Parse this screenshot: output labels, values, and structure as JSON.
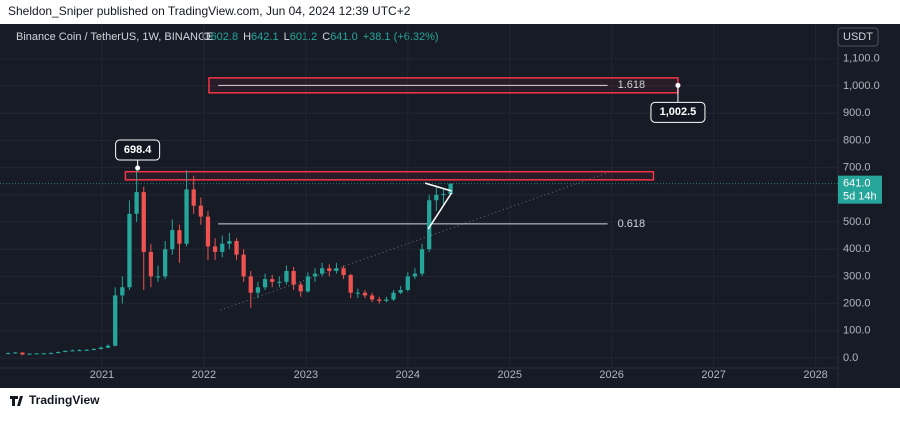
{
  "header": {
    "publisher": "Sheldon_Sniper published on TradingView.com, Jun 04, 2024 12:39 UTC+2",
    "symbol": "Binance Coin / TetherUS, 1W, BINANCE",
    "ohlc": [
      [
        "O",
        "602.8"
      ],
      [
        "H",
        "642.1"
      ],
      [
        "L",
        "601.2"
      ],
      [
        "C",
        "641.0"
      ]
    ],
    "change": "+38.1 (+6.32%)",
    "currency": "USDT"
  },
  "footer": {
    "brand": "TradingView"
  },
  "chart_data": {
    "type": "candlestick",
    "up_color": "#26a69a",
    "down_color": "#ef5350",
    "grid": true,
    "x": [
      2020.08,
      2020.15,
      2020.22,
      2020.29,
      2020.36,
      2020.43,
      2020.5,
      2020.57,
      2020.64,
      2020.71,
      2020.78,
      2020.85,
      2020.92,
      2020.99,
      2021.06,
      2021.13,
      2021.2,
      2021.27,
      2021.34,
      2021.41,
      2021.48,
      2021.55,
      2021.62,
      2021.69,
      2021.76,
      2021.83,
      2021.9,
      2021.97,
      2022.04,
      2022.11,
      2022.18,
      2022.25,
      2022.32,
      2022.39,
      2022.46,
      2022.53,
      2022.6,
      2022.67,
      2022.74,
      2022.81,
      2022.88,
      2022.95,
      2023.02,
      2023.09,
      2023.16,
      2023.23,
      2023.3,
      2023.37,
      2023.44,
      2023.51,
      2023.58,
      2023.65,
      2023.72,
      2023.79,
      2023.86,
      2023.93,
      2024.0,
      2024.07,
      2024.14,
      2024.21,
      2024.28,
      2024.35,
      2024.42
    ],
    "open": [
      16,
      18,
      20,
      13,
      16,
      17,
      17,
      18,
      22,
      26,
      28,
      29,
      30,
      33,
      38,
      45,
      230,
      260,
      530,
      610,
      390,
      300,
      300,
      400,
      470,
      420,
      620,
      560,
      520,
      410,
      390,
      420,
      430,
      380,
      300,
      240,
      260,
      290,
      280,
      280,
      320,
      270,
      245,
      300,
      310,
      330,
      320,
      330,
      305,
      240,
      240,
      230,
      215,
      210,
      215,
      240,
      250,
      300,
      310,
      400,
      580,
      600,
      602.8
    ],
    "high": [
      20,
      22,
      21,
      17,
      18,
      19,
      20,
      24,
      28,
      31,
      32,
      33,
      36,
      42,
      50,
      260,
      300,
      580,
      698.4,
      630,
      420,
      340,
      430,
      510,
      490,
      690,
      670,
      590,
      540,
      440,
      450,
      460,
      440,
      400,
      320,
      280,
      310,
      305,
      300,
      340,
      335,
      280,
      315,
      330,
      350,
      345,
      350,
      340,
      310,
      255,
      250,
      240,
      225,
      225,
      250,
      265,
      315,
      330,
      420,
      600,
      635,
      620,
      642.1
    ],
    "low": [
      14,
      16,
      10,
      12,
      15,
      15,
      16,
      17,
      21,
      24,
      26,
      27,
      28,
      31,
      36,
      43,
      200,
      250,
      500,
      250,
      260,
      280,
      290,
      380,
      350,
      410,
      530,
      490,
      360,
      360,
      370,
      400,
      360,
      280,
      185,
      220,
      250,
      260,
      260,
      270,
      250,
      225,
      240,
      280,
      300,
      300,
      310,
      290,
      220,
      220,
      220,
      205,
      200,
      205,
      210,
      235,
      245,
      290,
      300,
      390,
      540,
      560,
      601.2
    ],
    "close": [
      18,
      20,
      13,
      16,
      17,
      17,
      18,
      22,
      26,
      28,
      29,
      30,
      33,
      38,
      45,
      230,
      260,
      530,
      610,
      390,
      300,
      300,
      400,
      470,
      420,
      620,
      560,
      520,
      410,
      390,
      420,
      430,
      380,
      300,
      240,
      260,
      290,
      280,
      280,
      320,
      270,
      245,
      300,
      310,
      330,
      320,
      330,
      305,
      240,
      240,
      230,
      215,
      210,
      215,
      240,
      250,
      300,
      310,
      400,
      580,
      600,
      602.8,
      641
    ],
    "xlim": [
      2020,
      2028.22
    ],
    "xticks": [
      2021,
      2022,
      2023,
      2024,
      2025,
      2026,
      2027,
      2028
    ],
    "ylim": [
      -36.8,
      1228
    ],
    "yticks": [
      {
        "value": 0,
        "label": "0.0"
      },
      {
        "value": 100,
        "label": "100.0"
      },
      {
        "value": 200,
        "label": "200.0"
      },
      {
        "value": 300,
        "label": "300.0"
      },
      {
        "value": 400,
        "label": "400.0"
      },
      {
        "value": 500,
        "label": "500.0"
      },
      {
        "value": 600,
        "label": "600.0"
      },
      {
        "value": 700,
        "label": "700.0"
      },
      {
        "value": 800,
        "label": "800.0"
      },
      {
        "value": 900,
        "label": "900.0"
      },
      {
        "value": 1000,
        "label": "1,000.0"
      },
      {
        "value": 1100,
        "label": "1,100.0"
      }
    ],
    "last_price": {
      "value": 641,
      "label": "641.0",
      "countdown": "5d 14h"
    },
    "zones": [
      {
        "x": [
          2022.05,
          2026.65
        ],
        "low": 975,
        "high": 1030
      },
      {
        "x": [
          2021.23,
          2026.41
        ],
        "low": 655,
        "high": 685
      }
    ],
    "fib_levels": [
      {
        "label": "1.618",
        "value": 1002.5,
        "x": [
          2022.14,
          2025.96
        ]
      },
      {
        "label": "0.618",
        "value": 493,
        "x": [
          2022.14,
          2025.96
        ]
      }
    ],
    "callouts": [
      {
        "value": 698.4,
        "label": "698.4",
        "x": 2021.35
      },
      {
        "value": 1002.5,
        "label": "1,002.5",
        "x": 2026.65
      }
    ],
    "trendline": {
      "x": [
        2022.16,
        2025.98
      ],
      "y": [
        176,
        684
      ]
    },
    "triangle": [
      {
        "x": [
          2024.17,
          2024.43
        ],
        "y": [
          643,
          614
        ]
      },
      {
        "x": [
          2024.2,
          2024.43
        ],
        "y": [
          474,
          607
        ]
      }
    ]
  }
}
